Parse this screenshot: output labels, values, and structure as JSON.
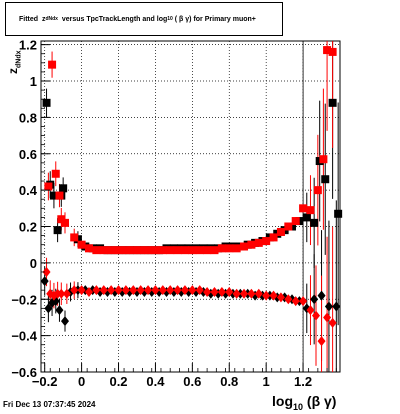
{
  "title": {
    "prefix": "Fitted",
    "z_label": "z",
    "z_sub": "dNdx",
    "middle": "versus TpcTrackLength and log",
    "log_sub": "10",
    "beta_gamma": "( β γ)",
    "suffix": "for Primary muon+"
  },
  "y_axis": {
    "label": "z",
    "sub": "dNdx"
  },
  "x_axis": {
    "label": "log",
    "sub": "10",
    "suffix": "(β γ)"
  },
  "timestamp": "Fri Dec 13 07:37:45 2024",
  "colors": {
    "series_black": "#000000",
    "series_red": "#ff0000",
    "error_red": "#cc0000"
  },
  "chart_data": {
    "type": "scatter",
    "xlim": [
      -0.22,
      1.4
    ],
    "ylim": [
      -0.6,
      1.22
    ],
    "x_ticks": [
      -0.2,
      0,
      0.2,
      0.4,
      0.6,
      0.8,
      1,
      1.2
    ],
    "x_tick_labels": [
      "−0.2",
      "0",
      "0.2",
      "0.4",
      "0.6",
      "0.8",
      "1",
      "1.2"
    ],
    "y_ticks": [
      -0.6,
      -0.4,
      -0.2,
      0,
      0.2,
      0.4,
      0.6,
      0.8,
      1.0,
      1.2
    ],
    "y_tick_labels": [
      "−0.6",
      "−0.4",
      "−0.2",
      "0",
      "0.2",
      "0.4",
      "0.6",
      "0.8",
      "1",
      "1.2"
    ],
    "grid": true,
    "vertical_lines": [
      1.2
    ],
    "series": [
      {
        "marker": "square",
        "color": "black",
        "points": [
          [
            -0.19,
            0.88
          ],
          [
            -0.17,
            0.43
          ],
          [
            -0.15,
            0.37
          ],
          [
            -0.13,
            0.18
          ],
          [
            -0.11,
            0.37
          ],
          [
            -0.1,
            0.41
          ],
          [
            -0.02,
            0.13
          ],
          [
            0.02,
            0.09
          ],
          [
            0.06,
            0.08
          ],
          [
            0.1,
            0.08
          ],
          [
            0.14,
            0.07
          ],
          [
            0.18,
            0.07
          ],
          [
            0.22,
            0.07
          ],
          [
            0.26,
            0.07
          ],
          [
            0.3,
            0.07
          ],
          [
            0.34,
            0.07
          ],
          [
            0.38,
            0.07
          ],
          [
            0.42,
            0.07
          ],
          [
            0.46,
            0.08
          ],
          [
            0.5,
            0.08
          ],
          [
            0.54,
            0.08
          ],
          [
            0.58,
            0.08
          ],
          [
            0.62,
            0.08
          ],
          [
            0.66,
            0.08
          ],
          [
            0.7,
            0.08
          ],
          [
            0.74,
            0.08
          ],
          [
            0.78,
            0.09
          ],
          [
            0.82,
            0.09
          ],
          [
            0.86,
            0.09
          ],
          [
            0.9,
            0.1
          ],
          [
            0.94,
            0.11
          ],
          [
            0.98,
            0.12
          ],
          [
            1.02,
            0.14
          ],
          [
            1.06,
            0.16
          ],
          [
            1.1,
            0.18
          ],
          [
            1.14,
            0.2
          ],
          [
            1.18,
            0.23
          ],
          [
            1.22,
            0.25
          ],
          [
            1.26,
            0.22
          ],
          [
            1.29,
            0.56
          ],
          [
            1.32,
            0.46
          ],
          [
            1.36,
            0.88
          ],
          [
            1.39,
            0.27
          ]
        ]
      },
      {
        "marker": "square",
        "color": "red",
        "points": [
          [
            -0.18,
            0.42
          ],
          [
            -0.16,
            1.09
          ],
          [
            -0.14,
            0.49
          ],
          [
            -0.12,
            0.37
          ],
          [
            -0.11,
            0.24
          ],
          [
            -0.09,
            0.22
          ],
          [
            -0.04,
            0.14
          ],
          [
            0.0,
            0.1
          ],
          [
            0.04,
            0.08
          ],
          [
            0.08,
            0.07
          ],
          [
            0.12,
            0.07
          ],
          [
            0.16,
            0.07
          ],
          [
            0.2,
            0.07
          ],
          [
            0.24,
            0.07
          ],
          [
            0.28,
            0.07
          ],
          [
            0.32,
            0.07
          ],
          [
            0.36,
            0.07
          ],
          [
            0.4,
            0.07
          ],
          [
            0.44,
            0.07
          ],
          [
            0.48,
            0.07
          ],
          [
            0.52,
            0.07
          ],
          [
            0.56,
            0.07
          ],
          [
            0.6,
            0.07
          ],
          [
            0.64,
            0.07
          ],
          [
            0.68,
            0.07
          ],
          [
            0.72,
            0.07
          ],
          [
            0.76,
            0.08
          ],
          [
            0.8,
            0.08
          ],
          [
            0.84,
            0.08
          ],
          [
            0.88,
            0.09
          ],
          [
            0.92,
            0.1
          ],
          [
            0.96,
            0.11
          ],
          [
            1.0,
            0.12
          ],
          [
            1.04,
            0.14
          ],
          [
            1.08,
            0.17
          ],
          [
            1.12,
            0.2
          ],
          [
            1.16,
            0.23
          ],
          [
            1.2,
            0.3
          ],
          [
            1.24,
            0.29
          ],
          [
            1.28,
            0.4
          ],
          [
            1.31,
            0.57
          ],
          [
            1.33,
            1.17
          ],
          [
            1.36,
            1.16
          ]
        ]
      },
      {
        "marker": "diamond",
        "color": "black",
        "points": [
          [
            -0.2,
            -0.1
          ],
          [
            -0.18,
            -0.25
          ],
          [
            -0.16,
            -0.22
          ],
          [
            -0.14,
            -0.21
          ],
          [
            -0.12,
            -0.26
          ],
          [
            -0.09,
            -0.32
          ],
          [
            -0.06,
            -0.16
          ],
          [
            -0.02,
            -0.15
          ],
          [
            0.02,
            -0.15
          ],
          [
            0.06,
            -0.15
          ],
          [
            0.1,
            -0.16
          ],
          [
            0.14,
            -0.16
          ],
          [
            0.18,
            -0.16
          ],
          [
            0.22,
            -0.16
          ],
          [
            0.26,
            -0.16
          ],
          [
            0.3,
            -0.16
          ],
          [
            0.34,
            -0.16
          ],
          [
            0.38,
            -0.16
          ],
          [
            0.42,
            -0.16
          ],
          [
            0.46,
            -0.16
          ],
          [
            0.5,
            -0.16
          ],
          [
            0.54,
            -0.16
          ],
          [
            0.58,
            -0.16
          ],
          [
            0.62,
            -0.16
          ],
          [
            0.66,
            -0.16
          ],
          [
            0.7,
            -0.17
          ],
          [
            0.74,
            -0.17
          ],
          [
            0.78,
            -0.17
          ],
          [
            0.82,
            -0.17
          ],
          [
            0.86,
            -0.17
          ],
          [
            0.9,
            -0.17
          ],
          [
            0.94,
            -0.18
          ],
          [
            0.98,
            -0.18
          ],
          [
            1.02,
            -0.18
          ],
          [
            1.06,
            -0.19
          ],
          [
            1.1,
            -0.19
          ],
          [
            1.14,
            -0.2
          ],
          [
            1.18,
            -0.21
          ],
          [
            1.22,
            -0.25
          ],
          [
            1.26,
            -0.2
          ],
          [
            1.3,
            -0.18
          ],
          [
            1.34,
            -0.24
          ],
          [
            1.38,
            -0.24
          ]
        ]
      },
      {
        "marker": "diamond",
        "color": "red",
        "points": [
          [
            -0.19,
            -0.05
          ],
          [
            -0.17,
            -0.17
          ],
          [
            -0.15,
            -0.18
          ],
          [
            -0.13,
            -0.17
          ],
          [
            -0.11,
            -0.17
          ],
          [
            -0.08,
            -0.17
          ],
          [
            -0.04,
            -0.15
          ],
          [
            0.0,
            -0.15
          ],
          [
            0.04,
            -0.16
          ],
          [
            0.08,
            -0.15
          ],
          [
            0.12,
            -0.15
          ],
          [
            0.16,
            -0.15
          ],
          [
            0.2,
            -0.15
          ],
          [
            0.24,
            -0.15
          ],
          [
            0.28,
            -0.15
          ],
          [
            0.32,
            -0.15
          ],
          [
            0.36,
            -0.15
          ],
          [
            0.4,
            -0.15
          ],
          [
            0.44,
            -0.15
          ],
          [
            0.48,
            -0.15
          ],
          [
            0.52,
            -0.15
          ],
          [
            0.56,
            -0.15
          ],
          [
            0.6,
            -0.15
          ],
          [
            0.64,
            -0.15
          ],
          [
            0.68,
            -0.16
          ],
          [
            0.72,
            -0.16
          ],
          [
            0.76,
            -0.16
          ],
          [
            0.8,
            -0.16
          ],
          [
            0.84,
            -0.17
          ],
          [
            0.88,
            -0.17
          ],
          [
            0.92,
            -0.17
          ],
          [
            0.96,
            -0.17
          ],
          [
            1.0,
            -0.18
          ],
          [
            1.04,
            -0.18
          ],
          [
            1.08,
            -0.19
          ],
          [
            1.12,
            -0.2
          ],
          [
            1.16,
            -0.21
          ],
          [
            1.2,
            -0.21
          ],
          [
            1.24,
            -0.26
          ],
          [
            1.27,
            -0.29
          ],
          [
            1.3,
            -0.43
          ],
          [
            1.33,
            -0.3
          ],
          [
            1.36,
            -0.33
          ]
        ]
      }
    ]
  }
}
